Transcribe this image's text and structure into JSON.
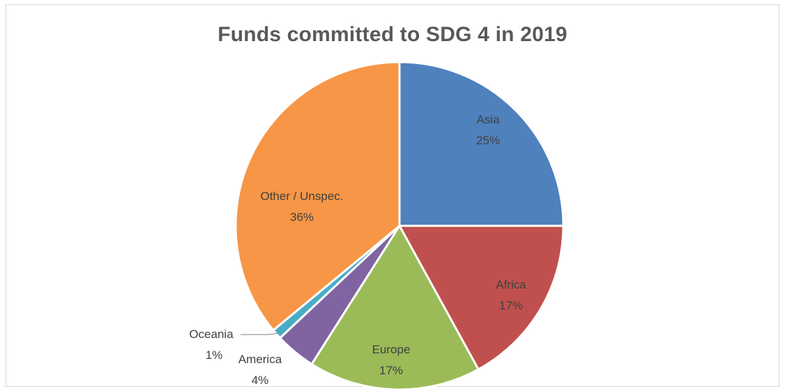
{
  "chart_data": {
    "type": "pie",
    "title": "Funds committed to SDG 4 in 2019",
    "start_angle_deg": 0,
    "direction": "clockwise",
    "slices": [
      {
        "label": "Asia",
        "value": 25,
        "value_label": "25%",
        "color": "#4f81bd"
      },
      {
        "label": "Africa",
        "value": 17,
        "value_label": "17%",
        "color": "#c0504d"
      },
      {
        "label": "Europe",
        "value": 17,
        "value_label": "17%",
        "color": "#9bbb59"
      },
      {
        "label": "America",
        "value": 4,
        "value_label": "4%",
        "color": "#8064a2"
      },
      {
        "label": "Oceania",
        "value": 1,
        "value_label": "1%",
        "color": "#4bacc6"
      },
      {
        "label": "Other / Unspec.",
        "value": 36,
        "value_label": "36%",
        "color": "#f79646"
      }
    ],
    "legend": "none"
  }
}
